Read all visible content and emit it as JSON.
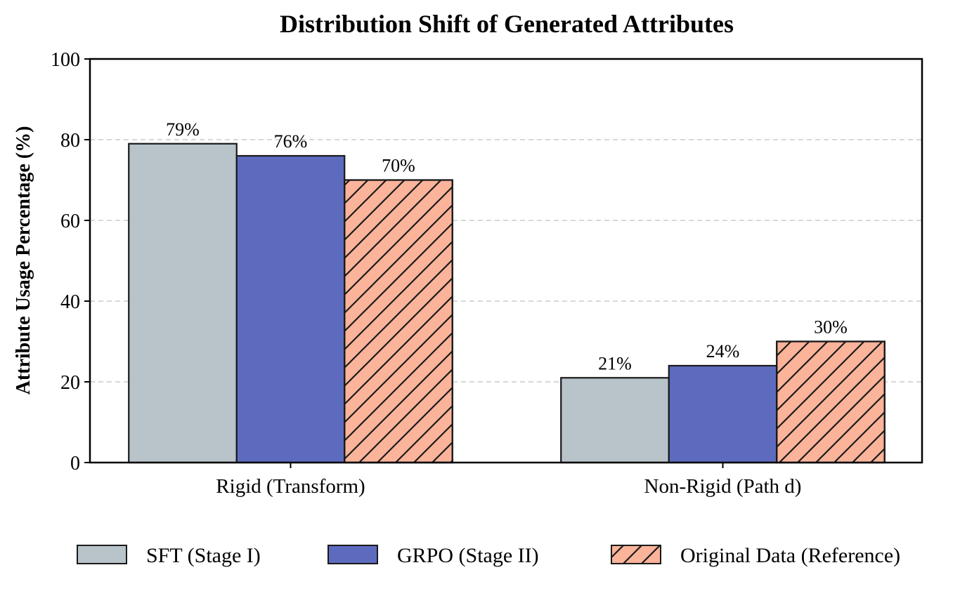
{
  "chart_data": {
    "type": "bar",
    "title": "Distribution Shift of Generated Attributes",
    "xlabel": "",
    "ylabel": "Attribute Usage Percentage (%)",
    "ylim": [
      0,
      100
    ],
    "yticks": [
      0,
      20,
      40,
      60,
      80,
      100
    ],
    "grid": "y-dashed",
    "legend_position": "bottom",
    "categories": [
      "Rigid (Transform)",
      "Non-Rigid (Path d)"
    ],
    "series": [
      {
        "name": "SFT (Stage I)",
        "values": [
          79,
          21
        ],
        "labels": [
          "79%",
          "21%"
        ],
        "color": "#b8c4ca",
        "hatch": false
      },
      {
        "name": "GRPO (Stage II)",
        "values": [
          76,
          24
        ],
        "labels": [
          "76%",
          "24%"
        ],
        "color": "#5d6bbf",
        "hatch": false
      },
      {
        "name": "Original Data (Reference)",
        "values": [
          70,
          30
        ],
        "labels": [
          "70%",
          "30%"
        ],
        "color": "#fbb39a",
        "hatch": true
      }
    ]
  }
}
